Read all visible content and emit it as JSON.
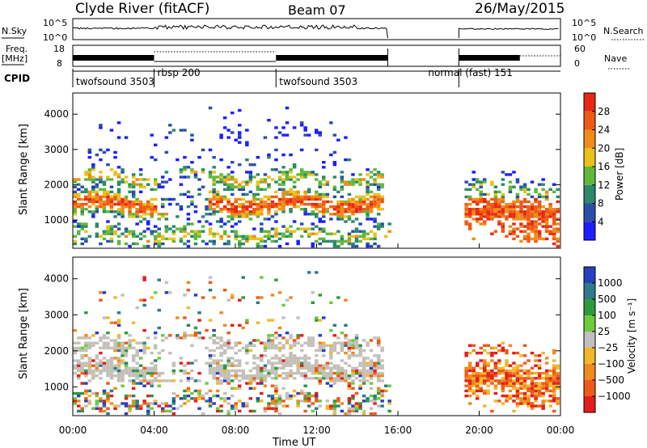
{
  "header": {
    "station": "Clyde River (fitACF)",
    "beam": "Beam 07",
    "date": "26/May/2015"
  },
  "panels": {
    "nsky_label": "N.Sky",
    "nsky_ticks": [
      "10^5",
      "10^0"
    ],
    "nsearch_label": "N.Search",
    "freq_label_line1": "Freq.",
    "freq_label_line2": "[MHz]",
    "freq_ticks": [
      "18",
      "8"
    ],
    "nave_ticks": [
      "60",
      "0"
    ],
    "nave_label": "Nave",
    "cpid_label": "CPID"
  },
  "cpid_modes": [
    {
      "label": "twofsound 3503",
      "start_hour": 0.0
    },
    {
      "label": "rbsp 200",
      "start_hour": 4.0
    },
    {
      "label": "twofsound 3503",
      "start_hour": 10.0
    },
    {
      "label": "normal (fast) 151",
      "start_hour": 19.0
    }
  ],
  "colors": {
    "power": [
      "#1e1eff",
      "#2a4fa8",
      "#2c8a6a",
      "#61b83a",
      "#e8c21a",
      "#f08c1a",
      "#ef5a14",
      "#e82814"
    ],
    "velocity": [
      "#2a3fc0",
      "#2f7a8a",
      "#2e9a3e",
      "#6ccc3a",
      "#c0c0c0",
      "#f2b82a",
      "#f08a1e",
      "#ee5a1a",
      "#e41e1e"
    ],
    "grey": "#c3c0b8"
  },
  "chart_data": [
    {
      "type": "heatmap",
      "name": "power",
      "xlabel": "",
      "ylabel": "Slant Range [km]",
      "xlim": [
        0,
        24
      ],
      "ylim": [
        200,
        4600
      ],
      "yticks": [
        1000,
        2000,
        3000,
        4000
      ],
      "colorbar_label": "Power [dB]",
      "colorbar_ticks": [
        4,
        8,
        12,
        16,
        20,
        24,
        28
      ],
      "colorbar_range": [
        0,
        32
      ],
      "data_gap_hours": [
        15.5,
        19.0
      ]
    },
    {
      "type": "heatmap",
      "name": "velocity",
      "xlabel": "Time UT",
      "ylabel": "Slant Range [km]",
      "xlim": [
        0,
        24
      ],
      "ylim": [
        200,
        4600
      ],
      "xticks": [
        "00:00",
        "04:00",
        "08:00",
        "12:00",
        "16:00",
        "20:00",
        "00:00"
      ],
      "yticks": [
        1000,
        2000,
        3000,
        4000
      ],
      "colorbar_label": "Velocity [m s⁻¹]",
      "colorbar_ticks": [
        "1000",
        "500",
        "100",
        "25",
        "−25",
        "−100",
        "−500",
        "−1000"
      ],
      "data_gap_hours": [
        15.5,
        19.0
      ]
    }
  ]
}
